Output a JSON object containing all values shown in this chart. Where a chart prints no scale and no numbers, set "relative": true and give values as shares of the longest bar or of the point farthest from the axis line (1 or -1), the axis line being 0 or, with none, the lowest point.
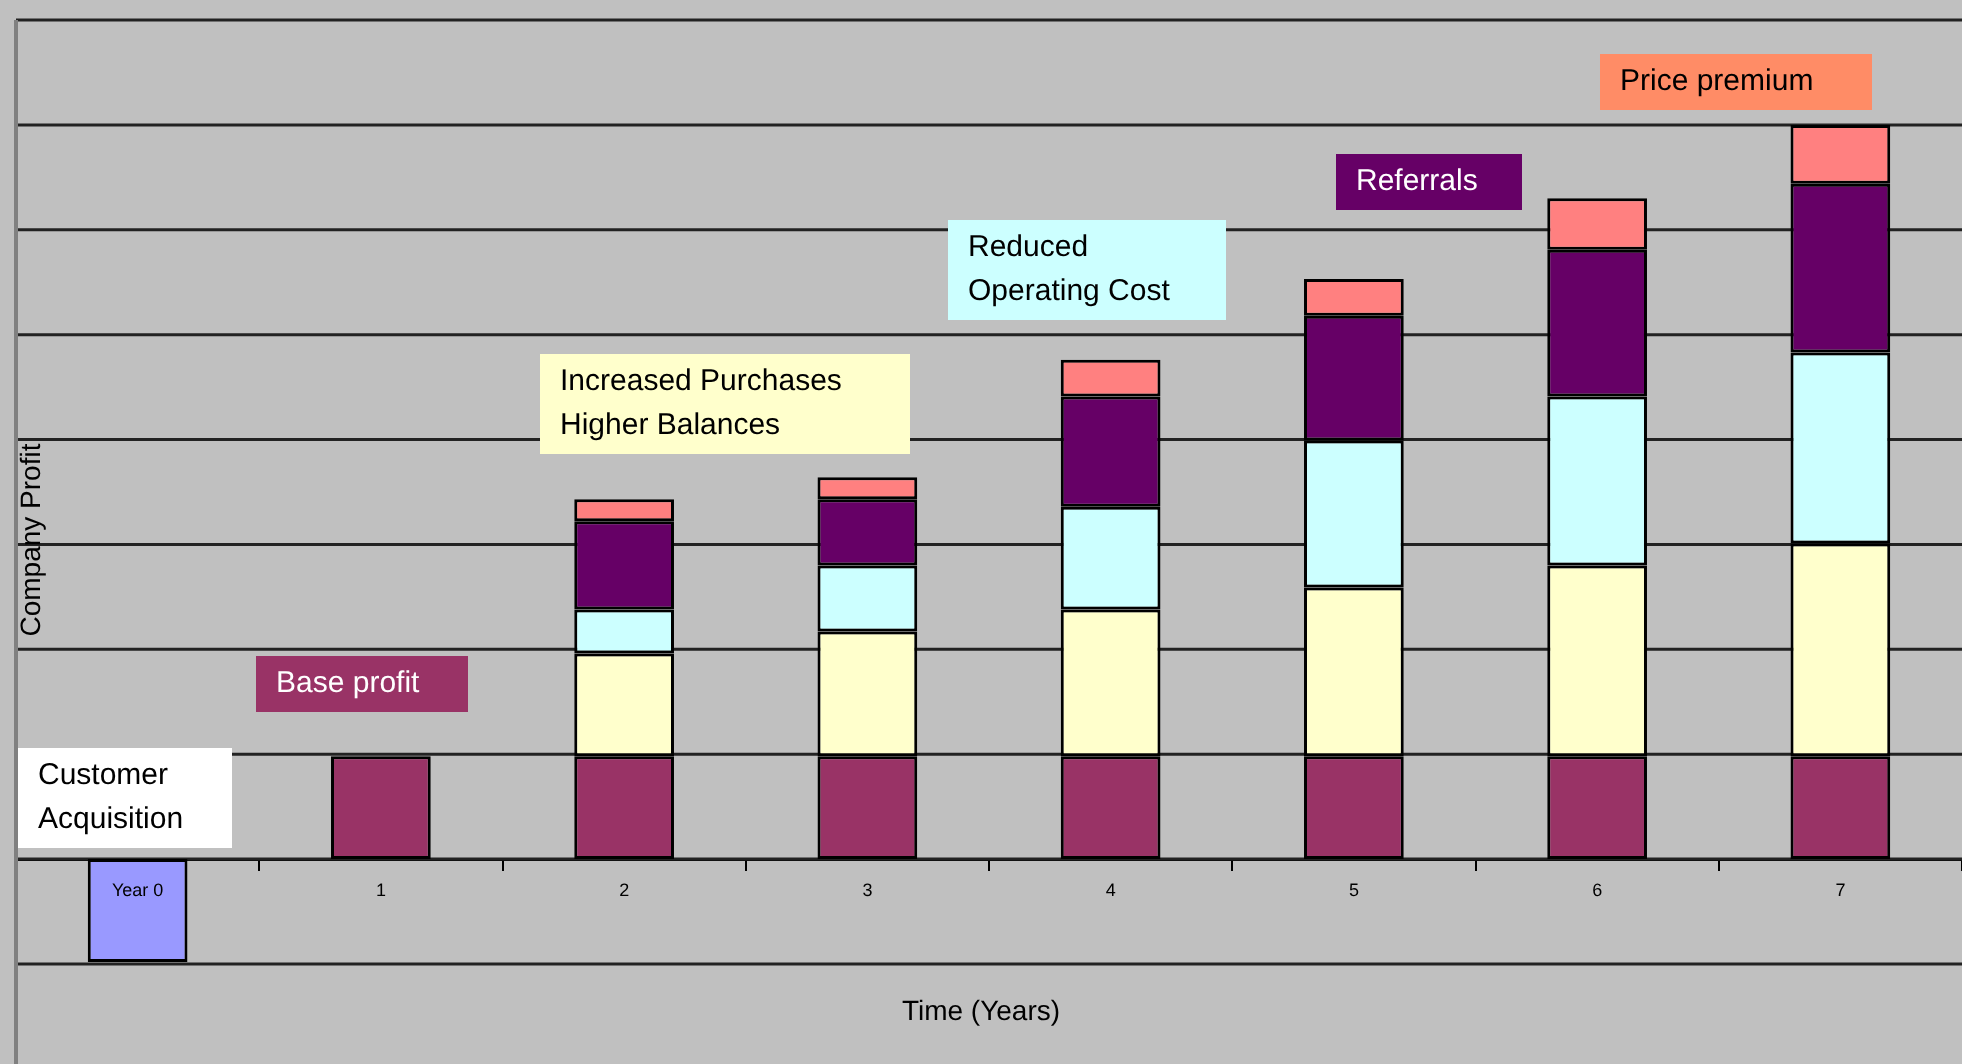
{
  "chart_data": {
    "type": "bar",
    "stacked": true,
    "relative": true,
    "grid": "y",
    "legend": false,
    "xlabel": "Time (Years)",
    "ylabel": "Company Profit",
    "categories": [
      "Year 0",
      "1",
      "2",
      "3",
      "4",
      "5",
      "6",
      "7"
    ],
    "series": [
      {
        "name": "Customer\nAcquisition",
        "color": "#9999ff",
        "values": [
          -0.14,
          null,
          null,
          null,
          null,
          null,
          null,
          null
        ]
      },
      {
        "name": "Base profit",
        "color": "#993366",
        "values": [
          null,
          0.14,
          0.14,
          0.14,
          0.14,
          0.14,
          0.14,
          0.14
        ]
      },
      {
        "name": "Increased Purchases\nHigher Balances",
        "color": "#ffffcc",
        "values": [
          null,
          null,
          0.14,
          0.17,
          0.2,
          0.23,
          0.26,
          0.29
        ]
      },
      {
        "name": "Reduced\nOperating Cost",
        "color": "#ccffff",
        "values": [
          null,
          null,
          0.06,
          0.09,
          0.14,
          0.2,
          0.23,
          0.26
        ]
      },
      {
        "name": "Referrals",
        "color": "#660066",
        "values": [
          null,
          null,
          0.12,
          0.09,
          0.15,
          0.17,
          0.2,
          0.23
        ]
      },
      {
        "name": "Price premium",
        "color": "#ff8080",
        "values": [
          null,
          null,
          0.03,
          0.03,
          0.05,
          0.05,
          0.07,
          0.08
        ]
      }
    ]
  }
}
